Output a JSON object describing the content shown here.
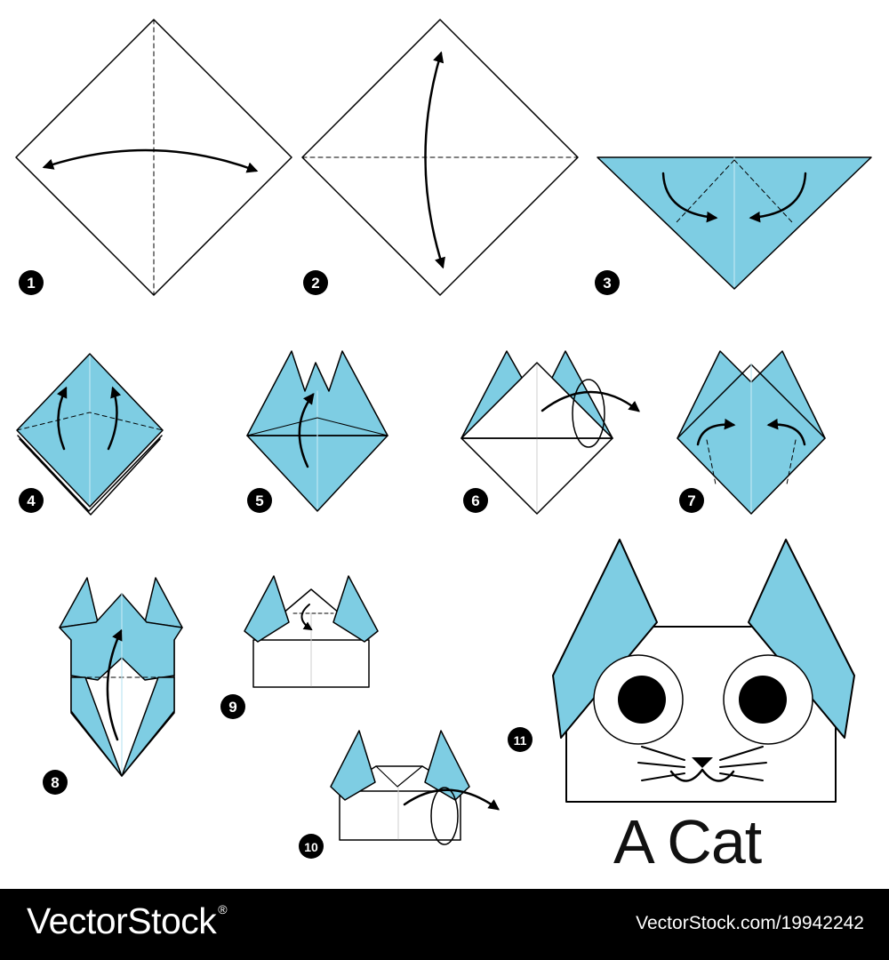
{
  "diagram": {
    "title": "A Cat",
    "step_numbers": [
      "1",
      "2",
      "3",
      "4",
      "5",
      "6",
      "7",
      "8",
      "9",
      "10",
      "11"
    ]
  },
  "colors": {
    "paper_blue": "#7ecde3",
    "paper_white": "#ffffff",
    "line": "#000000",
    "footer_bg": "#000000",
    "footer_text": "#ffffff"
  },
  "footer": {
    "logo": "VectorStock",
    "registered": "®",
    "credit": "VectorStock.com/19942242"
  }
}
